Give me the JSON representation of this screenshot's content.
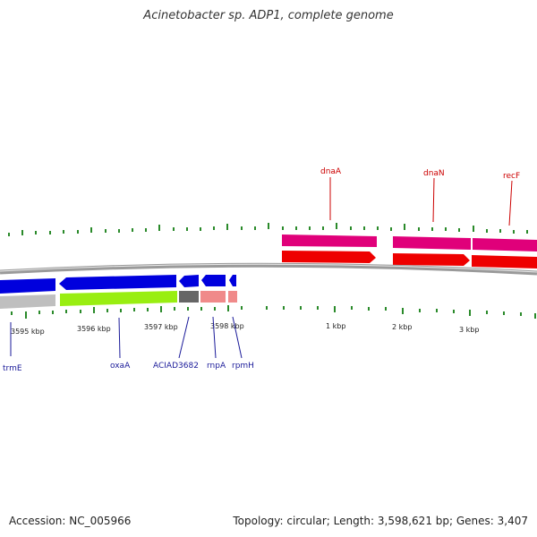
{
  "title": "Acinetobacter sp. ADP1, complete genome",
  "footer": {
    "accession": "Accession: NC_005966",
    "summary": "Topology: circular; Length: 3,598,621 bp; Genes: 3,407"
  },
  "colors": {
    "backbone": "#9a9a9a",
    "forward_strand_genes": "#e0007a",
    "forward_strand_cds": "#ee0000",
    "reverse_strand_genes": "#0000dd",
    "other_gene": "#bfbfbf",
    "ticks": "#2a8a2a"
  },
  "scale_labels": [
    "3595 kbp",
    "3596 kbp",
    "3597 kbp",
    "3598 kbp",
    "1 kbp",
    "2 kbp",
    "3 kbp"
  ],
  "forward_gene_labels": [
    "dnaA",
    "dnaN",
    "recF"
  ],
  "reverse_gene_labels": [
    "trmE",
    "oxaA",
    "ACIAD3682",
    "rnpA",
    "rpmH"
  ]
}
